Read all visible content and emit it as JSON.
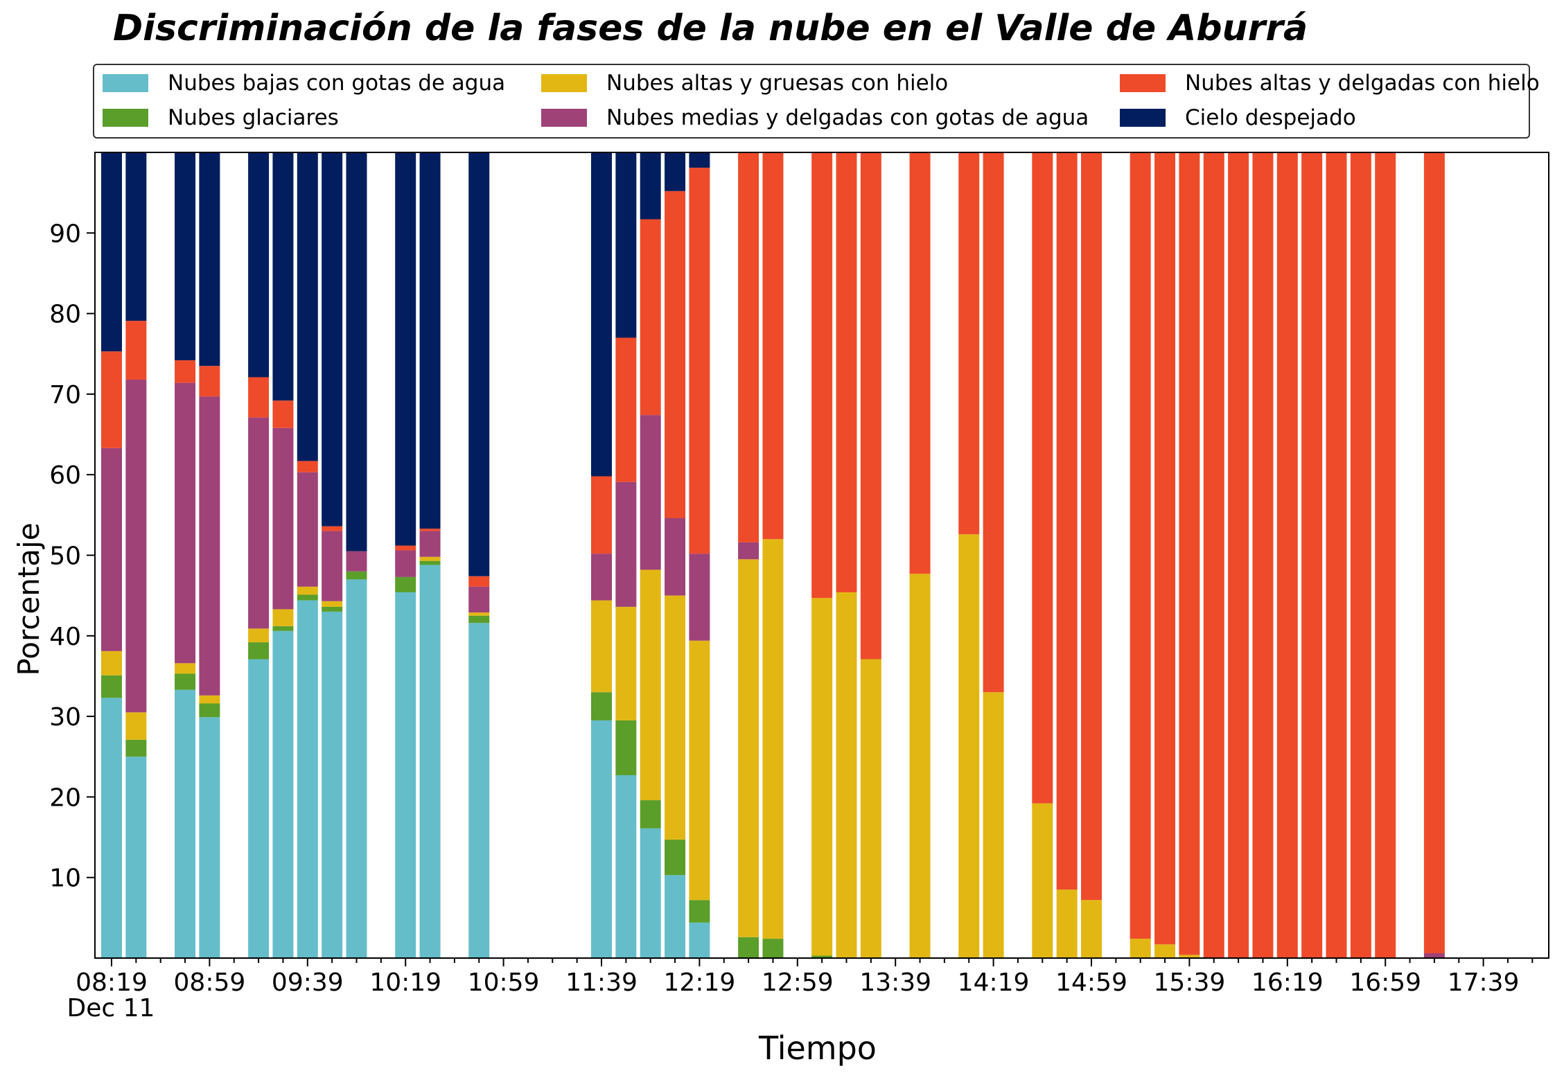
{
  "chart_data": {
    "type": "bar",
    "stacked": true,
    "title": "Discriminación de la fases de la nube en el Valle de Aburrá",
    "xlabel": "Tiempo",
    "ylabel": "Porcentaje",
    "ylim": [
      0,
      100
    ],
    "yticks": [
      10,
      20,
      30,
      40,
      50,
      60,
      70,
      80,
      90
    ],
    "xtick_labels": [
      "08:19",
      "08:59",
      "09:39",
      "10:19",
      "10:59",
      "11:39",
      "12:19",
      "12:59",
      "13:39",
      "14:19",
      "14:59",
      "15:39",
      "16:19",
      "16:59",
      "17:39"
    ],
    "x_date_label": "Dec 11",
    "x_interval_minutes": 10,
    "x_start": "08:19",
    "x_end": "17:59",
    "grid": false,
    "legend_position": "top",
    "x": [
      "08:19",
      "08:29",
      "08:49",
      "08:59",
      "09:19",
      "09:29",
      "09:39",
      "09:49",
      "09:59",
      "10:19",
      "10:29",
      "10:49",
      "11:39",
      "11:49",
      "11:59",
      "12:09",
      "12:19",
      "12:39",
      "12:49",
      "13:09",
      "13:19",
      "13:29",
      "13:49",
      "14:09",
      "14:19",
      "14:39",
      "14:49",
      "14:59",
      "15:19",
      "15:29",
      "15:39",
      "15:49",
      "15:59",
      "16:09",
      "16:19",
      "16:29",
      "16:39",
      "16:49",
      "16:59",
      "17:19"
    ],
    "series": [
      {
        "name": "Nubes bajas con gotas de agua",
        "color": "#65BDCA",
        "values": [
          32.3,
          25.0,
          33.3,
          29.9,
          37.1,
          40.6,
          44.4,
          43.0,
          47.0,
          45.4,
          48.8,
          41.6,
          29.5,
          22.7,
          16.1,
          10.3,
          4.4,
          0,
          0,
          0,
          0,
          0,
          0,
          0,
          0,
          0,
          0,
          0,
          0,
          0,
          0,
          0,
          0,
          0,
          0,
          0,
          0,
          0,
          0,
          0
        ]
      },
      {
        "name": "Nubes glaciares",
        "color": "#5B9E2A",
        "values": [
          2.8,
          2.1,
          2.0,
          1.7,
          2.1,
          0.6,
          0.7,
          0.6,
          1.0,
          1.9,
          0.5,
          0.9,
          3.5,
          6.8,
          3.5,
          4.4,
          2.8,
          2.6,
          2.4,
          0.3,
          0,
          0,
          0,
          0,
          0,
          0,
          0,
          0,
          0,
          0,
          0,
          0,
          0,
          0,
          0,
          0,
          0,
          0,
          0,
          0
        ]
      },
      {
        "name": "Nubes altas y gruesas con hielo",
        "color": "#E2B714",
        "values": [
          3.0,
          3.4,
          1.3,
          1.0,
          1.7,
          2.1,
          1.0,
          0.7,
          0,
          0,
          0.5,
          0.4,
          11.4,
          14.1,
          28.6,
          30.3,
          32.2,
          46.9,
          49.6,
          44.4,
          45.4,
          37.1,
          47.7,
          52.6,
          33.0,
          19.2,
          8.5,
          7.2,
          2.4,
          1.7,
          0.4,
          0,
          0,
          0,
          0,
          0,
          0,
          0,
          0,
          0
        ]
      },
      {
        "name": "Nubes medias y delgadas con gotas de agua",
        "color": "#9F4278",
        "values": [
          25.2,
          41.3,
          34.8,
          37.1,
          26.2,
          22.5,
          14.2,
          8.7,
          2.5,
          3.3,
          3.2,
          3.2,
          5.8,
          15.5,
          19.2,
          9.6,
          10.8,
          2.1,
          0,
          0,
          0,
          0,
          0,
          0,
          0,
          0,
          0,
          0,
          0,
          0,
          0,
          0,
          0,
          0,
          0,
          0,
          0,
          0,
          0,
          0.6
        ]
      },
      {
        "name": "Nubes altas y delgadas con hielo",
        "color": "#EE4B2B",
        "values": [
          12.0,
          7.3,
          2.8,
          3.8,
          5.0,
          3.4,
          1.4,
          0.6,
          0,
          0.6,
          0.3,
          1.3,
          9.6,
          17.9,
          24.3,
          40.6,
          47.9,
          48.4,
          48.0,
          55.3,
          54.6,
          62.9,
          52.3,
          47.4,
          67.0,
          80.8,
          91.5,
          92.8,
          97.6,
          98.3,
          99.6,
          100,
          100,
          100,
          100,
          100,
          100,
          100,
          100,
          99.4
        ]
      },
      {
        "name": "Cielo despejado",
        "color": "#021E5E",
        "values": [
          24.7,
          20.9,
          25.8,
          26.5,
          27.9,
          30.8,
          38.3,
          46.4,
          49.5,
          48.8,
          46.7,
          52.6,
          40.2,
          23.0,
          8.3,
          4.8,
          1.9,
          0,
          0,
          0,
          0,
          0,
          0,
          0,
          0,
          0,
          0,
          0,
          0,
          0,
          0,
          0,
          0,
          0,
          0,
          0,
          0,
          0,
          0,
          0
        ]
      }
    ]
  }
}
